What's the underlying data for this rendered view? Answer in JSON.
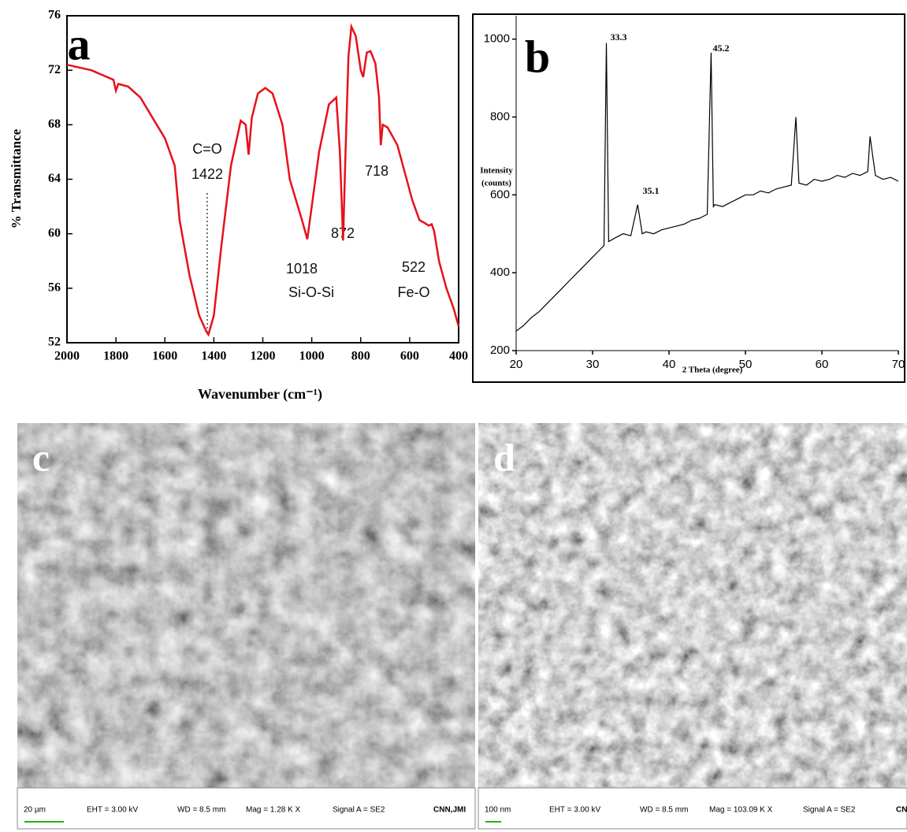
{
  "chart_data": [
    {
      "type": "line",
      "label": "a",
      "x_label": "Wavenumber (cm⁻¹)",
      "y_label": "% Transmittance",
      "color": "#e8101a",
      "xlim": [
        2000,
        400
      ],
      "xticks": [
        2000,
        1800,
        1600,
        1400,
        1200,
        1000,
        800,
        600,
        400
      ],
      "ylim": [
        52,
        76
      ],
      "yticks": [
        52,
        56,
        60,
        64,
        68,
        72,
        76
      ],
      "annotations": [
        "C=O",
        "1422",
        "1018",
        "Si-O-Si",
        "872",
        "718",
        "522",
        "Fe-O"
      ],
      "x": [
        2000,
        1900,
        1810,
        1800,
        1790,
        1750,
        1700,
        1650,
        1600,
        1560,
        1540,
        1500,
        1460,
        1430,
        1422,
        1400,
        1370,
        1330,
        1290,
        1270,
        1258,
        1245,
        1220,
        1190,
        1160,
        1120,
        1090,
        1070,
        1040,
        1018,
        1000,
        970,
        930,
        900,
        885,
        872,
        862,
        850,
        838,
        820,
        800,
        790,
        775,
        760,
        740,
        725,
        718,
        710,
        690,
        650,
        620,
        590,
        560,
        540,
        522,
        510,
        500,
        480,
        450,
        420,
        400
      ],
      "values": [
        72.4,
        72.0,
        71.3,
        70.5,
        71.0,
        70.8,
        70.0,
        68.5,
        67.0,
        65.0,
        61,
        57,
        54,
        52.8,
        52.6,
        54,
        59,
        65,
        68.3,
        68.0,
        65.8,
        68.5,
        70.3,
        70.7,
        70.3,
        68,
        64,
        62.8,
        61,
        59.6,
        62,
        66,
        69.5,
        70.0,
        66,
        59.5,
        66,
        73,
        75.2,
        74.5,
        72.0,
        71.5,
        73.3,
        73.4,
        72.5,
        70,
        66.5,
        68,
        67.8,
        66.5,
        64.5,
        62.5,
        61,
        60.8,
        60.6,
        60.7,
        60.2,
        58,
        56,
        54.5,
        53.2
      ]
    },
    {
      "type": "line",
      "label": "b",
      "x_label": "2 Theta (degree)",
      "y_label": [
        "Intensity",
        "(counts)"
      ],
      "color": "#000000",
      "xlim": [
        20,
        70
      ],
      "xticks": [
        20,
        30,
        40,
        50,
        60,
        70
      ],
      "ylim": [
        200,
        1060
      ],
      "yticks": [
        200,
        400,
        600,
        800,
        1000
      ],
      "annotations": [
        "33.3",
        "35.1",
        "45.2"
      ],
      "x": [
        20,
        21,
        22,
        23,
        24,
        25,
        26,
        27,
        28,
        29,
        30,
        31,
        31.5,
        31.8,
        32.1,
        33,
        34,
        35,
        35.9,
        36.5,
        37,
        38,
        39,
        40,
        41,
        42,
        43,
        44,
        45,
        45.5,
        45.8,
        46,
        47,
        48,
        49,
        50,
        51,
        52,
        53,
        54,
        55,
        56,
        56.6,
        57,
        58,
        59,
        60,
        61,
        62,
        63,
        64,
        65,
        66,
        66.3,
        67,
        68,
        69,
        70
      ],
      "values": [
        250,
        265,
        285,
        300,
        320,
        340,
        360,
        380,
        400,
        420,
        440,
        460,
        470,
        990,
        480,
        490,
        500,
        495,
        575,
        500,
        505,
        500,
        510,
        515,
        520,
        525,
        535,
        540,
        550,
        965,
        570,
        575,
        570,
        580,
        590,
        600,
        600,
        610,
        605,
        615,
        620,
        625,
        800,
        630,
        625,
        640,
        635,
        640,
        650,
        645,
        655,
        650,
        660,
        750,
        650,
        640,
        645,
        635
      ]
    }
  ],
  "images": [
    {
      "label": "c",
      "scale": "20 µm",
      "info": [
        "EHT = 3.00 kV",
        "WD = 8.5 mm",
        "Mag = 1.28 K X",
        "Signal A = SE2",
        "CNN,JMI"
      ]
    },
    {
      "label": "d",
      "scale": "100 nm",
      "info": [
        "EHT = 3.00 kV",
        "WD = 8.5 mm",
        "Mag = 103.09 K X",
        "Signal A = SE2",
        "CNN,JMI"
      ]
    }
  ]
}
